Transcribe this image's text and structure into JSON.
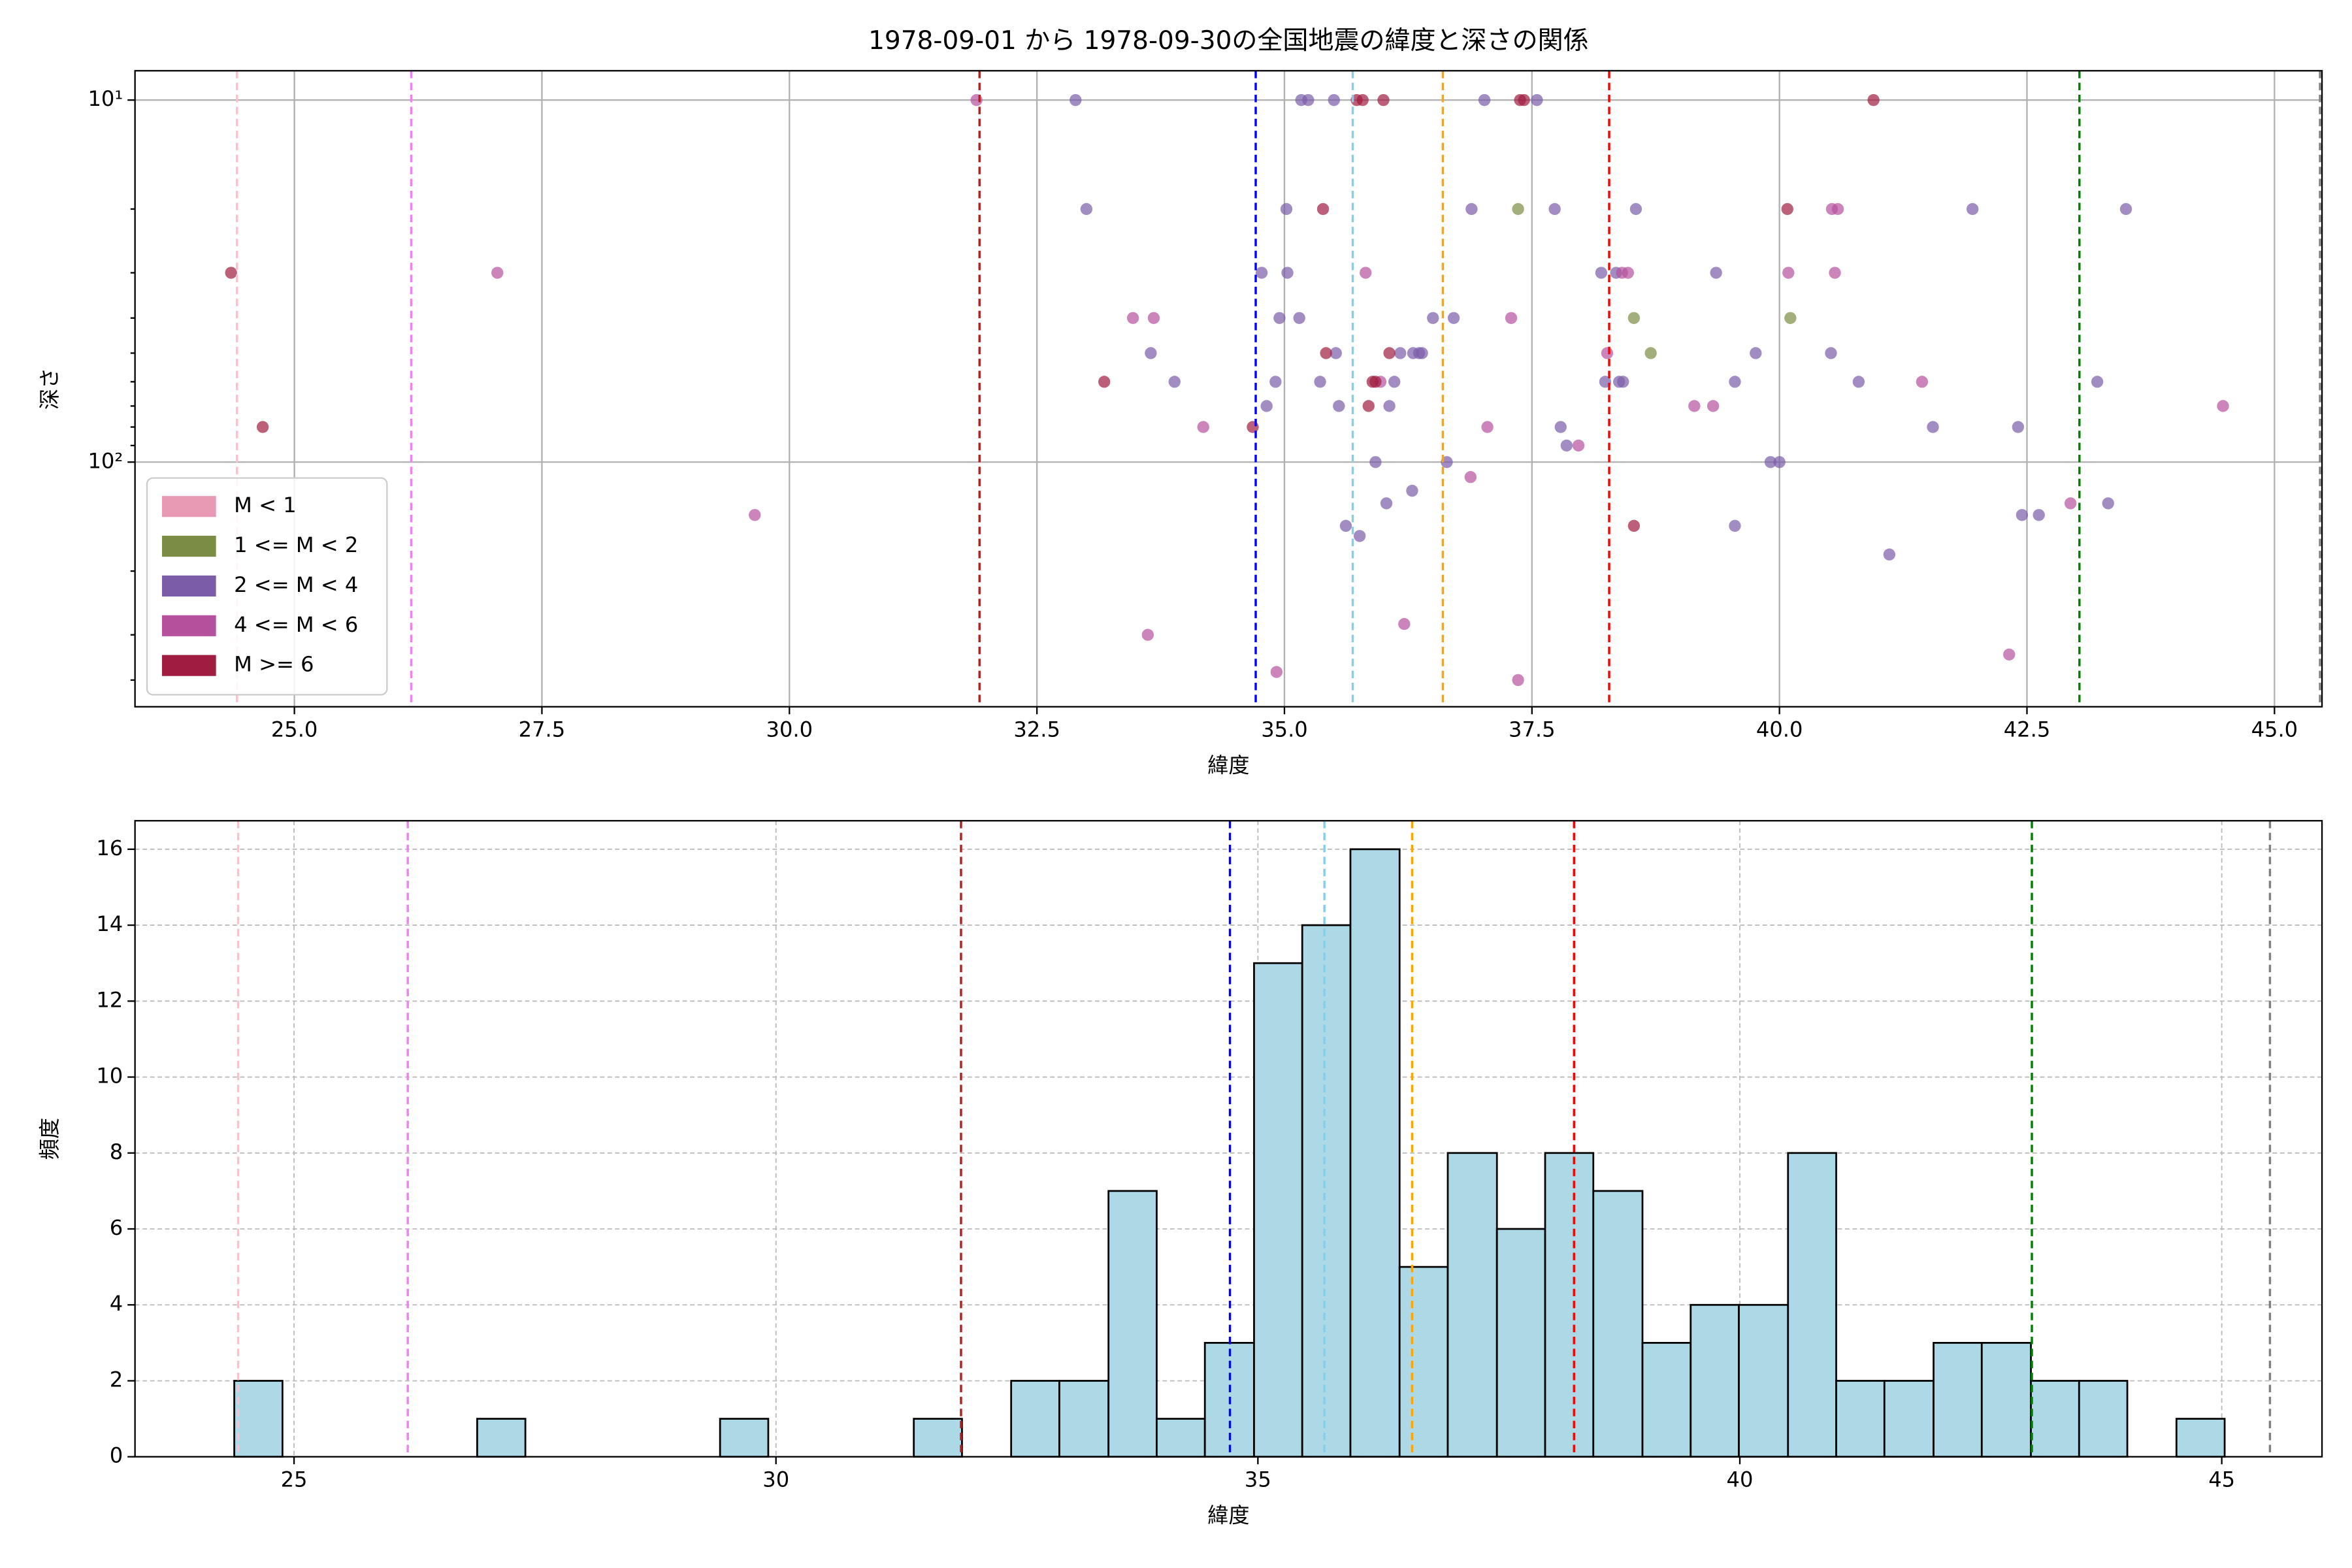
{
  "chart_data": [
    {
      "type": "scatter",
      "title": "1978-09-01 から 1978-09-30の全国地震の緯度と深さの関係",
      "xlabel": "緯度",
      "ylabel": "深さ",
      "xlim": [
        23.39,
        45.48
      ],
      "xticks": [
        {
          "value": 25,
          "label": "25.0"
        },
        {
          "value": 27.5,
          "label": "27.5"
        },
        {
          "value": 30,
          "label": "30.0"
        },
        {
          "value": 32.5,
          "label": "32.5"
        },
        {
          "value": 35,
          "label": "35.0"
        },
        {
          "value": 37.5,
          "label": "37.5"
        },
        {
          "value": 40,
          "label": "40.0"
        },
        {
          "value": 42.5,
          "label": "42.5"
        },
        {
          "value": 45,
          "label": "45.0"
        }
      ],
      "ylog": true,
      "ylim": [
        474,
        8.3
      ],
      "yticks": [
        {
          "value": 10,
          "label": "10¹"
        },
        {
          "value": 100,
          "label": "10²"
        }
      ],
      "yminorticks": [
        20,
        30,
        40,
        50,
        60,
        70,
        80,
        90,
        200,
        300,
        400
      ],
      "grid": true,
      "legend": "lower left",
      "alpha": 0.7,
      "vlines": [
        {
          "value": 24.42,
          "color": "pink"
        },
        {
          "value": 26.18,
          "color": "violet"
        },
        {
          "value": 31.92,
          "color": "#b22222"
        },
        {
          "value": 34.71,
          "color": "blue"
        },
        {
          "value": 35.69,
          "color": "skyblue"
        },
        {
          "value": 36.6,
          "color": "orange"
        },
        {
          "value": 38.28,
          "color": "red"
        },
        {
          "value": 43.03,
          "color": "green"
        },
        {
          "value": 45.46,
          "color": "gray"
        }
      ],
      "series": [
        {
          "name": "M < 1",
          "color": "#e899b3",
          "x": [],
          "values": []
        },
        {
          "name": "1 <= M < 2",
          "color": "#7b8c45",
          "x": [
            37.36,
            38.53,
            38.7,
            40.11
          ],
          "values": [
            20,
            40,
            50,
            40
          ]
        },
        {
          "name": "2 <= M < 4",
          "color": "#7a5ca8",
          "x": [
            32.89,
            33.0,
            33.65,
            33.89,
            34.77,
            34.82,
            34.91,
            34.95,
            35.02,
            35.03,
            35.15,
            35.17,
            35.24,
            35.36,
            35.5,
            35.52,
            35.55,
            35.62,
            35.76,
            35.92,
            36.03,
            36.06,
            36.11,
            36.17,
            36.29,
            36.3,
            36.36,
            36.39,
            36.5,
            36.64,
            36.71,
            36.89,
            37.02,
            37.55,
            37.73,
            37.79,
            37.85,
            38.2,
            38.24,
            38.35,
            38.38,
            38.42,
            38.55,
            39.36,
            39.55,
            39.55,
            39.76,
            39.91,
            40.0,
            40.52,
            40.8,
            41.11,
            41.55,
            41.95,
            42.41,
            42.45,
            42.62,
            43.21,
            43.32,
            43.5
          ],
          "values": [
            10,
            20,
            50,
            60,
            30,
            70,
            60,
            40,
            20,
            30,
            40,
            10,
            10,
            60,
            10,
            50,
            70,
            150,
            160,
            100,
            130,
            70,
            60,
            50,
            120,
            50,
            50,
            50,
            40,
            100,
            40,
            20,
            10,
            10,
            20,
            80,
            90,
            30,
            60,
            30,
            60,
            60,
            20,
            30,
            60,
            150,
            50,
            100,
            100,
            50,
            60,
            180,
            80,
            20,
            80,
            140,
            140,
            60,
            130,
            20
          ]
        },
        {
          "name": "4 <= M < 6",
          "color": "#b5519c",
          "x": [
            27.05,
            29.65,
            31.89,
            33.47,
            33.62,
            33.68,
            34.18,
            34.92,
            35.82,
            35.97,
            36.21,
            36.88,
            37.05,
            37.29,
            37.36,
            37.97,
            38.26,
            38.41,
            38.47,
            39.14,
            39.33,
            40.09,
            40.53,
            40.56,
            40.59,
            41.44,
            42.32,
            42.94,
            44.48
          ],
          "values": [
            30,
            140,
            10,
            40,
            300,
            40,
            80,
            380,
            30,
            60,
            280,
            110,
            80,
            40,
            400,
            90,
            50,
            30,
            30,
            70,
            70,
            30,
            20,
            30,
            20,
            60,
            340,
            130,
            70
          ]
        },
        {
          "name": "M >= 6",
          "color": "#a01c40",
          "x": [
            24.36,
            24.68,
            33.18,
            34.68,
            35.39,
            35.42,
            35.73,
            35.79,
            35.85,
            35.89,
            35.92,
            36.0,
            36.06,
            37.38,
            37.42,
            38.53,
            40.08,
            40.95
          ],
          "values": [
            30,
            80,
            60,
            80,
            20,
            50,
            10,
            10,
            70,
            60,
            60,
            10,
            50,
            10,
            10,
            150,
            20,
            10
          ]
        }
      ]
    },
    {
      "type": "histogram",
      "xlabel": "緯度",
      "ylabel": "頻度",
      "xlim": [
        23.35,
        46.04
      ],
      "xticks": [
        25,
        30,
        35,
        40,
        45
      ],
      "ylim": [
        0,
        16.75
      ],
      "yticks": [
        0,
        2,
        4,
        6,
        8,
        10,
        12,
        14,
        16
      ],
      "grid": true,
      "color": "#add8e6",
      "edgecolor": "#000000",
      "vlines": [
        {
          "value": 24.42,
          "color": "pink"
        },
        {
          "value": 26.18,
          "color": "violet"
        },
        {
          "value": 31.92,
          "color": "#b22222"
        },
        {
          "value": 34.71,
          "color": "blue"
        },
        {
          "value": 35.69,
          "color": "skyblue"
        },
        {
          "value": 36.6,
          "color": "orange"
        },
        {
          "value": 38.28,
          "color": "red"
        },
        {
          "value": 43.03,
          "color": "green"
        },
        {
          "value": 45.5,
          "color": "gray"
        }
      ],
      "bins": [
        24.38,
        24.88,
        25.39,
        25.89,
        26.39,
        26.9,
        27.4,
        27.91,
        28.41,
        28.91,
        29.42,
        29.92,
        30.42,
        30.93,
        31.43,
        31.93,
        32.44,
        32.94,
        33.45,
        33.95,
        34.45,
        34.96,
        35.46,
        35.96,
        36.47,
        36.97,
        37.48,
        37.98,
        38.48,
        38.99,
        39.49,
        39.99,
        40.5,
        41.0,
        41.5,
        42.01,
        42.51,
        43.02,
        43.52,
        44.02,
        44.53,
        45.03
      ],
      "values": [
        2,
        0,
        0,
        0,
        0,
        1,
        0,
        0,
        0,
        0,
        1,
        0,
        0,
        0,
        1,
        0,
        2,
        2,
        7,
        1,
        3,
        13,
        14,
        16,
        5,
        8,
        6,
        8,
        7,
        3,
        4,
        4,
        8,
        2,
        2,
        3,
        3,
        2,
        2,
        0,
        1
      ]
    }
  ]
}
